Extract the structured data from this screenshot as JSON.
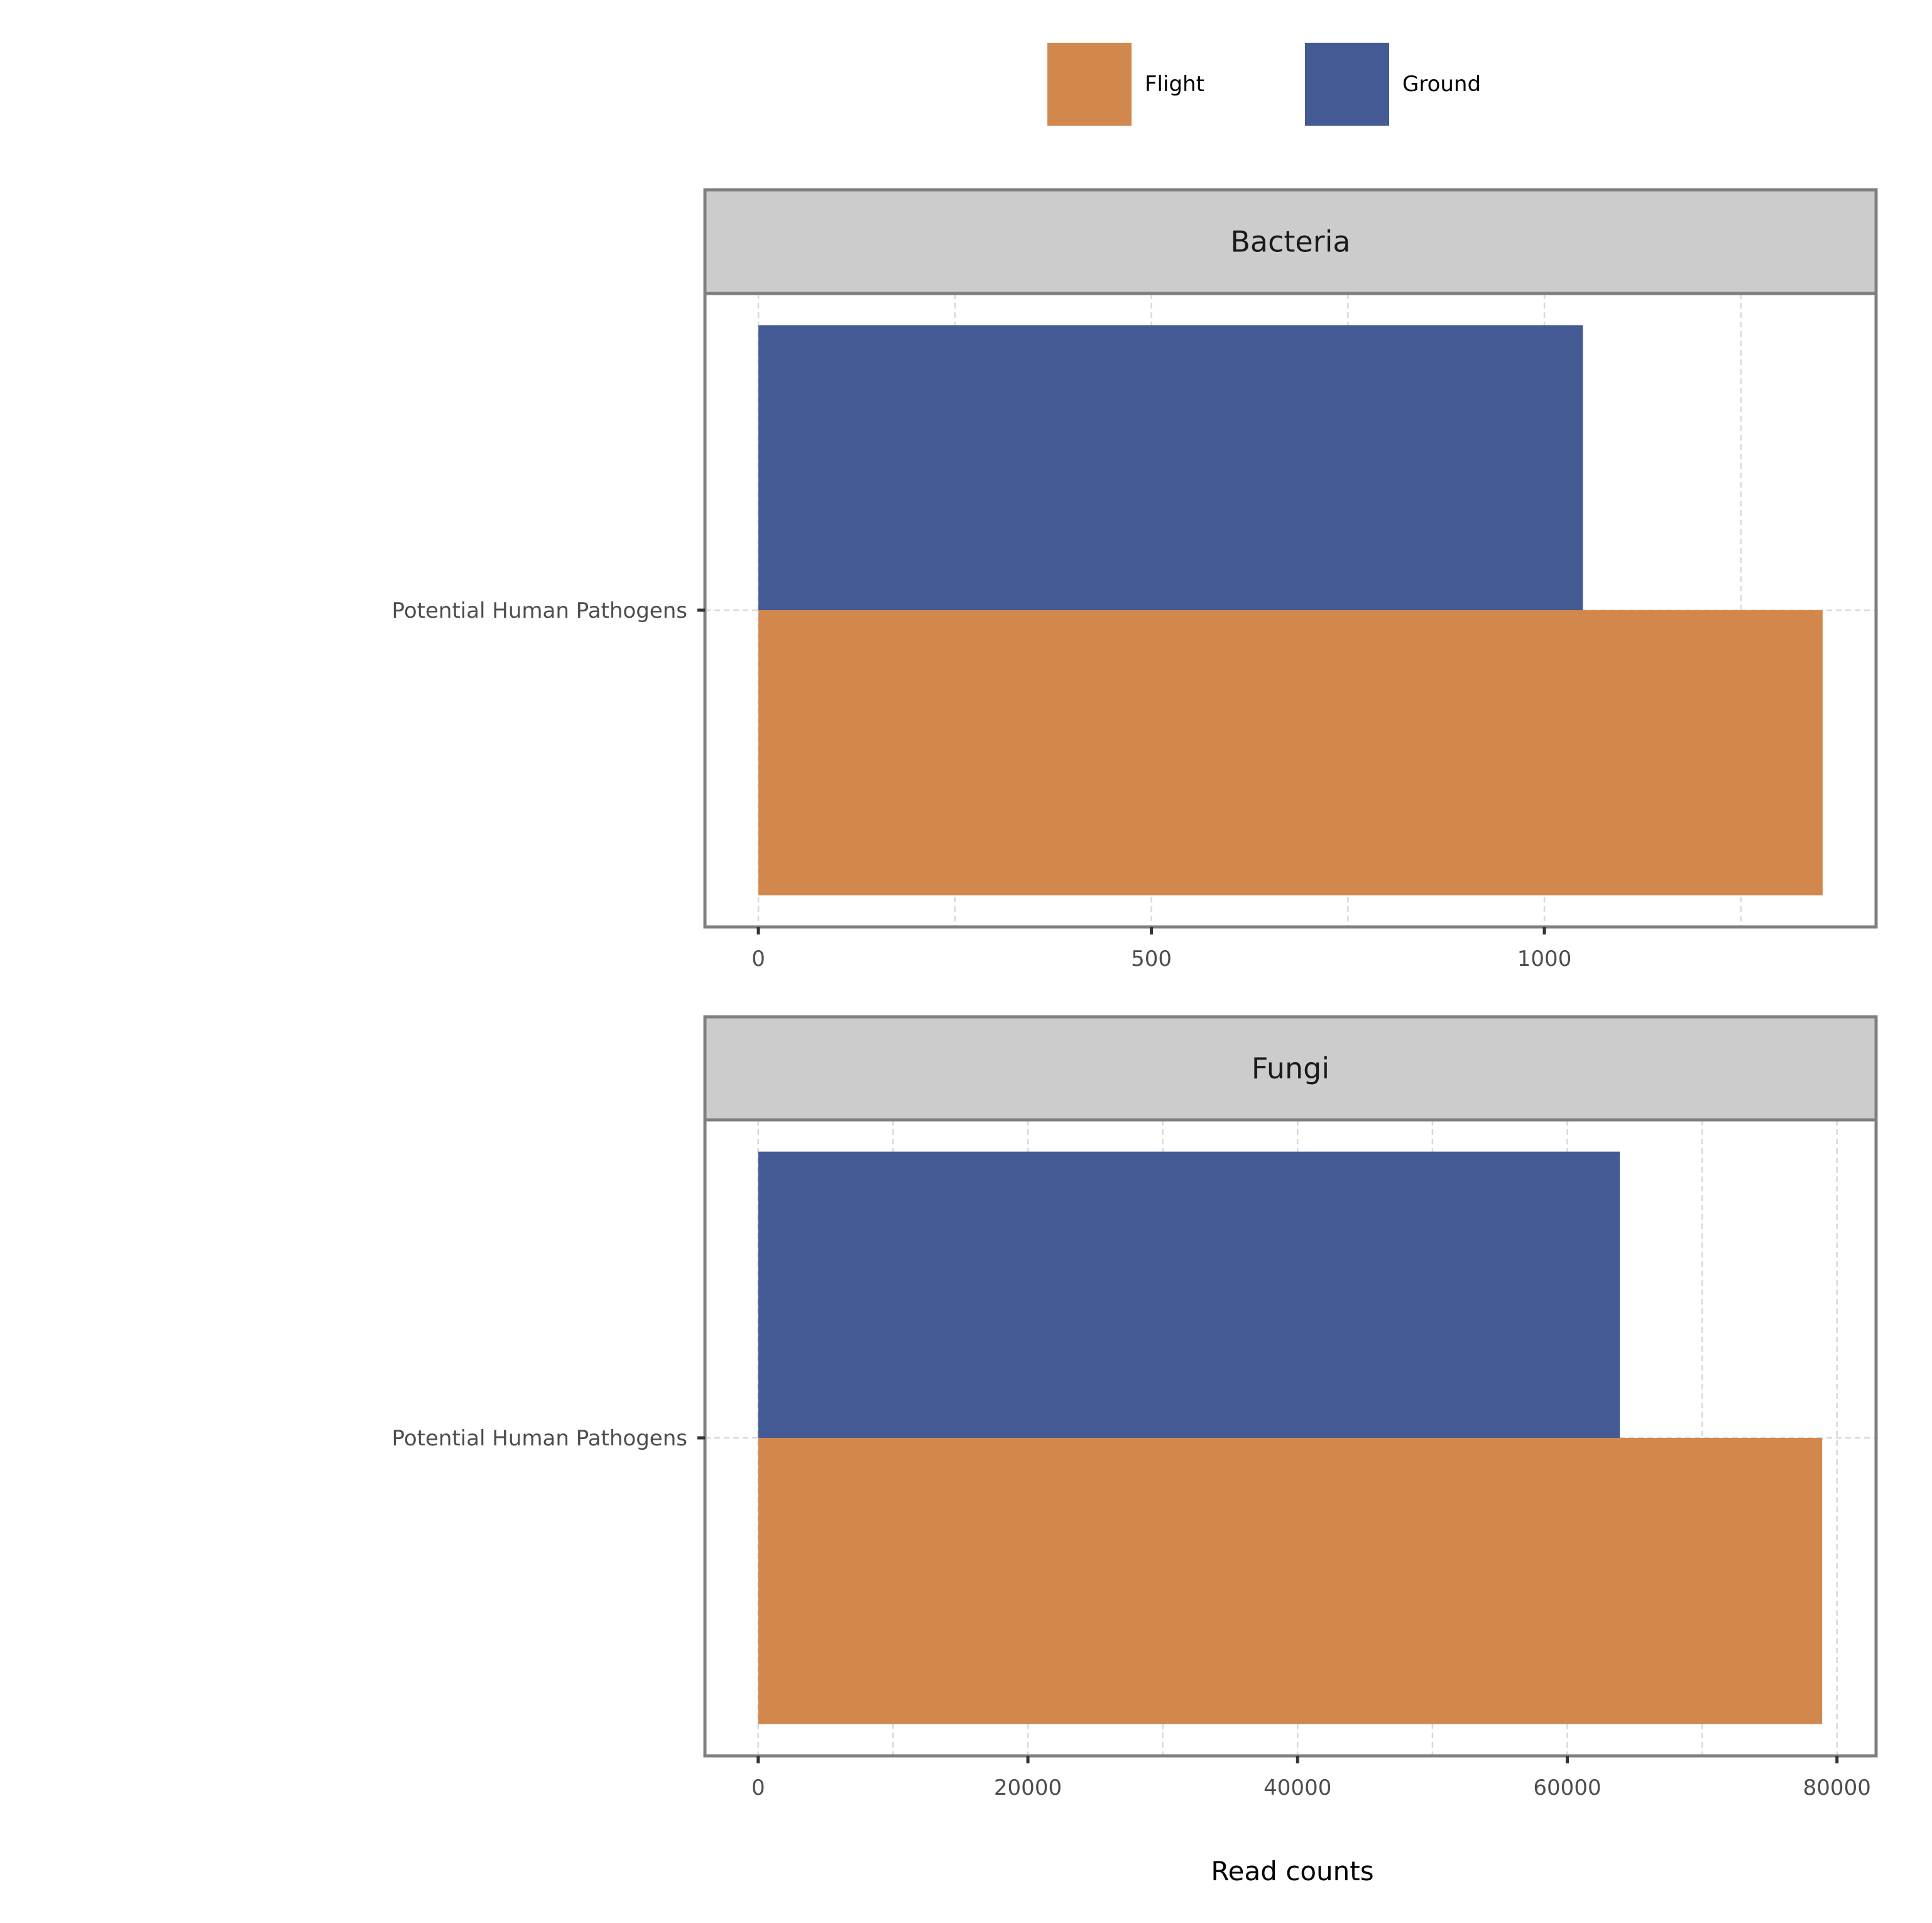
{
  "chart_data": {
    "type": "bar",
    "orientation": "horizontal",
    "xlabel": "Read counts",
    "legend": {
      "placement": "top",
      "items": [
        {
          "name": "Flight",
          "color": "#D2884C"
        },
        {
          "name": "Ground",
          "color": "#435A94"
        }
      ]
    },
    "grid": true,
    "facets": [
      {
        "title": "Bacteria",
        "category": "Potential Human Pathogens",
        "xlim": [
          -68,
          1422
        ],
        "xticks": [
          0,
          500,
          1000
        ],
        "xtick_labels": [
          "0",
          "500",
          "1000"
        ],
        "series": [
          {
            "name": "Ground",
            "value": 1049
          },
          {
            "name": "Flight",
            "value": 1354
          }
        ]
      },
      {
        "title": "Fungi",
        "category": "Potential Human Pathogens",
        "xlim": [
          -3950,
          82900
        ],
        "xticks": [
          0,
          20000,
          40000,
          60000,
          80000
        ],
        "xtick_labels": [
          "0",
          "20000",
          "40000",
          "60000",
          "80000"
        ],
        "series": [
          {
            "name": "Ground",
            "value": 63900
          },
          {
            "name": "Flight",
            "value": 78900
          }
        ]
      }
    ]
  }
}
